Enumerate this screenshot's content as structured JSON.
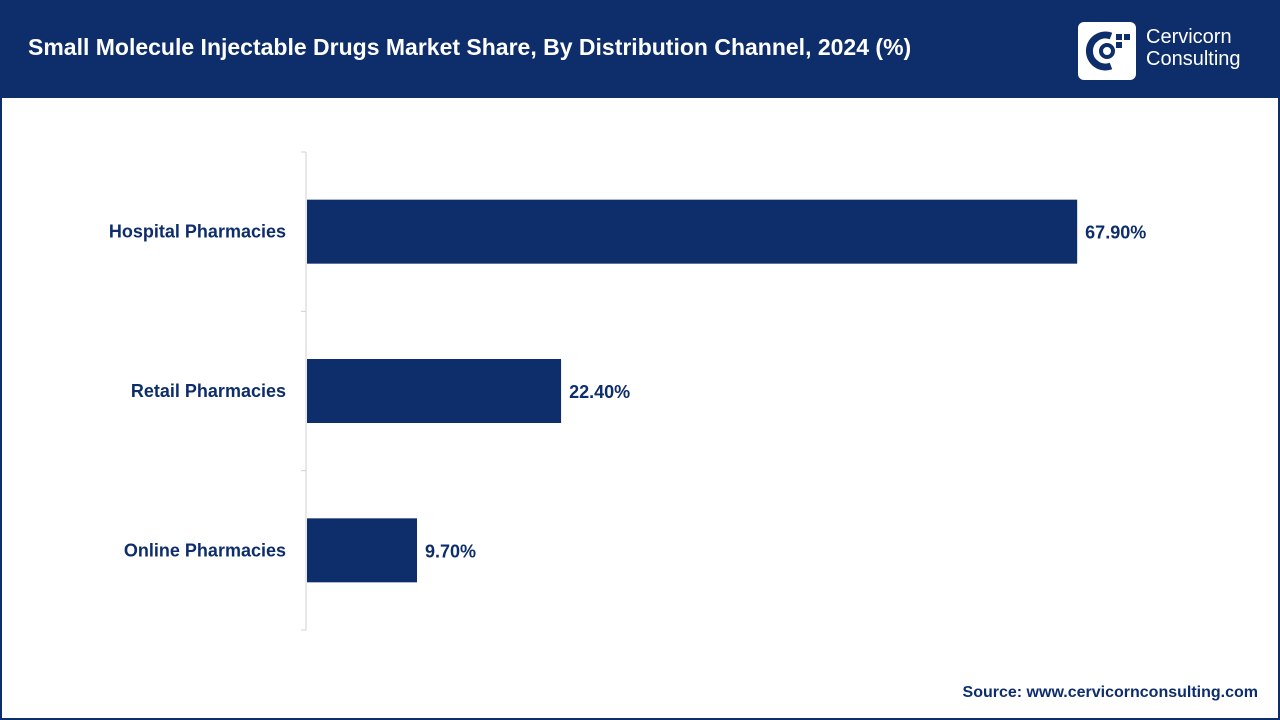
{
  "header": {
    "title": "Small Molecule Injectable Drugs Market Share, By Distribution Channel, 2024 (%)"
  },
  "logo": {
    "line1": "Cervicorn",
    "line2": "Consulting"
  },
  "colors": {
    "brand": "#0d2d6b",
    "bar": "#0d2d6b",
    "background": "#ffffff"
  },
  "chart_data": {
    "type": "bar",
    "orientation": "horizontal",
    "title": "Small Molecule Injectable Drugs Market Share, By Distribution Channel, 2024 (%)",
    "categories": [
      "Hospital Pharmacies",
      "Retail Pharmacies",
      "Online Pharmacies"
    ],
    "values": [
      67.9,
      22.4,
      9.7
    ],
    "value_labels": [
      "67.90%",
      "22.40%",
      "9.70%"
    ],
    "xlabel": "",
    "ylabel": "",
    "xlim": [
      0,
      70
    ],
    "grid": false,
    "legend": "none"
  },
  "footer": {
    "source": "Source: www.cervicornconsulting.com"
  }
}
